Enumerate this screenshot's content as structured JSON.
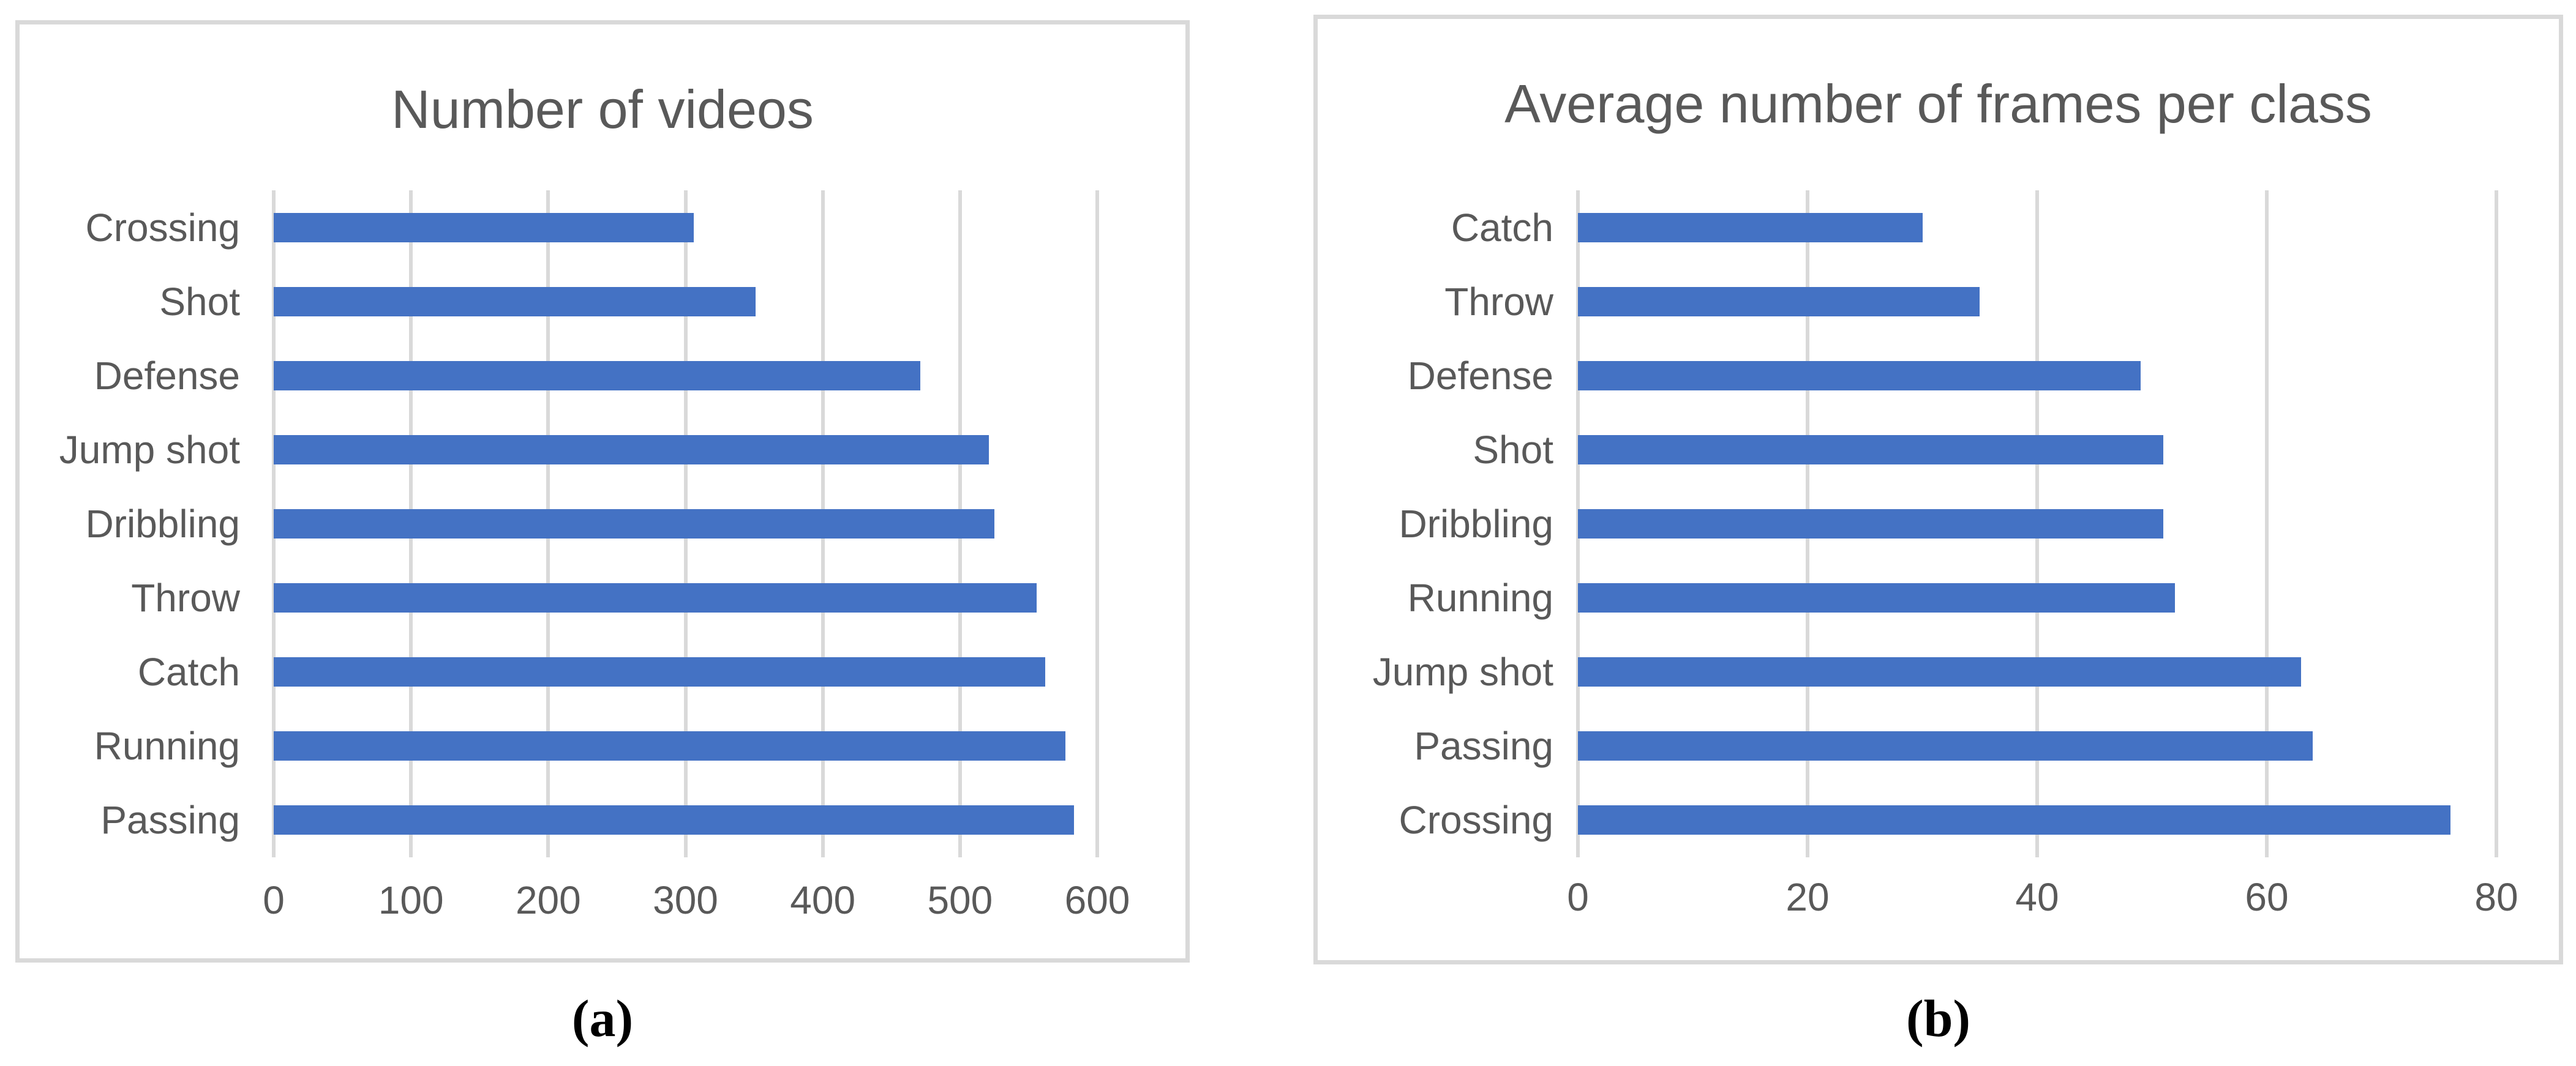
{
  "figure": {
    "captions": [
      "(a)",
      "(b)"
    ],
    "colors": {
      "bar": "#4472c4",
      "gridline": "#d9d9d9",
      "panel_border": "#d9d9d9",
      "text": "#595959",
      "caption": "#000000",
      "background": "#ffffff"
    }
  },
  "chart_data": [
    {
      "type": "bar",
      "orientation": "horizontal",
      "title": "Number of videos",
      "categories": [
        "Crossing",
        "Shot",
        "Defense",
        "Jump shot",
        "Dribbling",
        "Throw",
        "Catch",
        "Running",
        "Passing"
      ],
      "values": [
        306,
        351,
        471,
        521,
        525,
        556,
        562,
        577,
        583
      ],
      "xlabel": "",
      "ylabel": "",
      "xlim": [
        0,
        600
      ],
      "xticks": [
        0,
        100,
        200,
        300,
        400,
        500,
        600
      ],
      "grid": true,
      "legend": false,
      "caption": "(a)"
    },
    {
      "type": "bar",
      "orientation": "horizontal",
      "title": "Average number of frames per class",
      "categories": [
        "Catch",
        "Throw",
        "Defense",
        "Shot",
        "Dribbling",
        "Running",
        "Jump shot",
        "Passing",
        "Crossing"
      ],
      "values": [
        30,
        35,
        49,
        51,
        51,
        52,
        63,
        64,
        76
      ],
      "xlabel": "",
      "ylabel": "",
      "xlim": [
        0,
        80
      ],
      "xticks": [
        0,
        20,
        40,
        60,
        80
      ],
      "grid": true,
      "legend": false,
      "caption": "(b)"
    }
  ]
}
